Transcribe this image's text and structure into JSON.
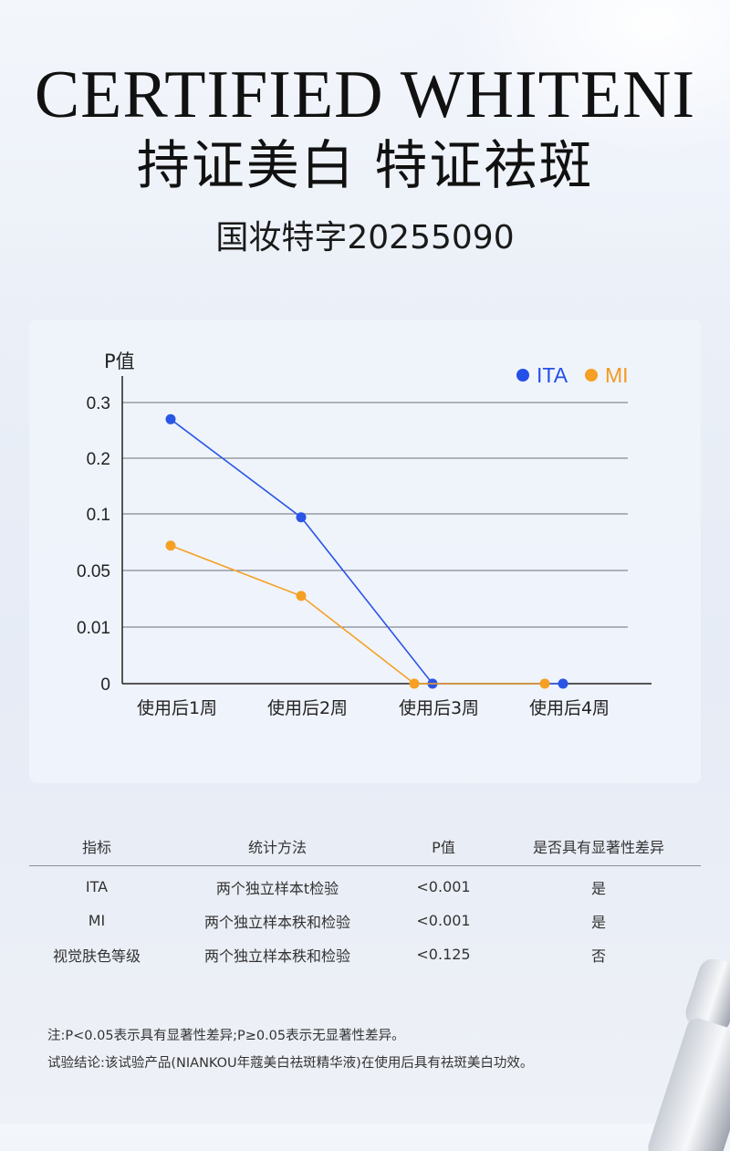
{
  "header": {
    "title_en": "CERTIFIED WHITENI",
    "title_cn": "持证美白 特证祛斑",
    "registration": "国妆特字20255090"
  },
  "colors": {
    "ita": "#2a55e6",
    "mi": "#f5a024",
    "grid": "#6b6f77"
  },
  "chart_data": {
    "type": "line",
    "ylabel": "P值",
    "xlabel": "",
    "categories": [
      "使用后1周",
      "使用后2周",
      "使用后3周",
      "使用后4周"
    ],
    "y_tick_labels": [
      "0",
      "0.01",
      "0.05",
      "0.1",
      "0.2",
      "0.3"
    ],
    "y_scale": "categorical-ticks",
    "series": [
      {
        "name": "ITA",
        "values": [
          0.27,
          0.097,
          0.0,
          0.0
        ]
      },
      {
        "name": "MI",
        "values": [
          0.072,
          0.032,
          0.0,
          0.0
        ]
      }
    ],
    "legend": "top-right",
    "grid": true
  },
  "table": {
    "headers": [
      "指标",
      "统计方法",
      "P值",
      "是否具有显著性差异"
    ],
    "rows": [
      [
        "ITA",
        "两个独立样本t检验",
        "<0.001",
        "是"
      ],
      [
        "MI",
        "两个独立样本秩和检验",
        "<0.001",
        "是"
      ],
      [
        "视觉肤色等级",
        "两个独立样本秩和检验",
        "<0.125",
        "否"
      ]
    ]
  },
  "notes": [
    "注:P<0.05表示具有显著性差异;P≥0.05表示无显著性差异。",
    "试验结论:该试验产品(NIANKOU年蔻美白祛斑精华液)在使用后具有祛斑美白功效。"
  ]
}
